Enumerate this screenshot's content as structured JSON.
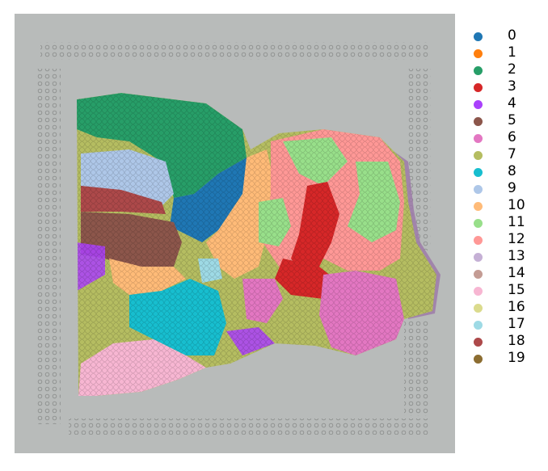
{
  "legend": {
    "items": [
      {
        "label": "0",
        "color": "#1f77b4"
      },
      {
        "label": "1",
        "color": "#ff7f0e"
      },
      {
        "label": "2",
        "color": "#279e68"
      },
      {
        "label": "3",
        "color": "#d62728"
      },
      {
        "label": "4",
        "color": "#aa40fc"
      },
      {
        "label": "5",
        "color": "#8c564b"
      },
      {
        "label": "6",
        "color": "#e377c2"
      },
      {
        "label": "7",
        "color": "#b5bd61"
      },
      {
        "label": "8",
        "color": "#17becf"
      },
      {
        "label": "9",
        "color": "#aec7e8"
      },
      {
        "label": "10",
        "color": "#ffbb78"
      },
      {
        "label": "11",
        "color": "#98df8a"
      },
      {
        "label": "12",
        "color": "#ff9896"
      },
      {
        "label": "13",
        "color": "#c5b0d5"
      },
      {
        "label": "14",
        "color": "#c49c94"
      },
      {
        "label": "15",
        "color": "#f7b6d2"
      },
      {
        "label": "16",
        "color": "#dbdb8d"
      },
      {
        "label": "17",
        "color": "#9edae5"
      },
      {
        "label": "18",
        "color": "#ad494a"
      },
      {
        "label": "19",
        "color": "#8c6d31"
      }
    ]
  },
  "colors": {
    "slide_background": "#b8bbba",
    "tissue_purple": "#9c7aa8"
  }
}
